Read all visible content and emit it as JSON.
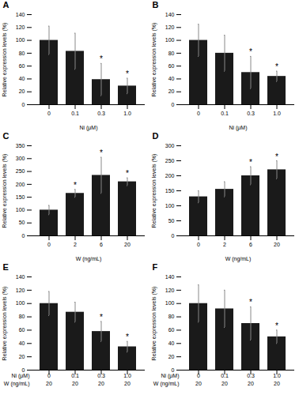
{
  "chart_data": [
    {
      "type": "bar",
      "title": "A",
      "categories": [
        "0",
        "0.1",
        "0.3",
        "1.0"
      ],
      "values": [
        100,
        83,
        39,
        29
      ],
      "errors": [
        22,
        28,
        25,
        12
      ],
      "annotations": [
        null,
        null,
        "*",
        "*"
      ],
      "xlabel": "Ni (μM)",
      "ylabel": "Relative expression levels (%)",
      "ylim": [
        0,
        140
      ],
      "yticks": [
        0,
        20,
        40,
        60,
        80,
        100,
        120,
        140
      ],
      "color": "#1a1a1a"
    },
    {
      "type": "bar",
      "title": "B",
      "categories": [
        "0",
        "0.1",
        "0.3",
        "1.0"
      ],
      "values": [
        100,
        80,
        50,
        44
      ],
      "errors": [
        25,
        28,
        25,
        8
      ],
      "annotations": [
        null,
        null,
        "*",
        "*"
      ],
      "xlabel": "Ni (μM)",
      "ylabel": "Relative expression levels (%)",
      "ylim": [
        0,
        140
      ],
      "yticks": [
        0,
        20,
        40,
        60,
        80,
        100,
        120,
        140
      ],
      "color": "#1a1a1a"
    },
    {
      "type": "bar",
      "title": "C",
      "categories": [
        "0",
        "2",
        "6",
        "20"
      ],
      "values": [
        100,
        165,
        235,
        210
      ],
      "errors": [
        18,
        15,
        70,
        15
      ],
      "annotations": [
        null,
        "*",
        "*",
        "*"
      ],
      "xlabel": "W (ng/mL)",
      "ylabel": "Relative expression levels (%)",
      "ylim": [
        0,
        350
      ],
      "yticks": [
        0,
        50,
        100,
        150,
        200,
        250,
        300,
        350
      ],
      "color": "#1a1a1a"
    },
    {
      "type": "bar",
      "title": "D",
      "categories": [
        "0",
        "2",
        "6",
        "20"
      ],
      "values": [
        130,
        155,
        200,
        220
      ],
      "errors": [
        20,
        25,
        30,
        30
      ],
      "annotations": [
        null,
        null,
        "*",
        "*"
      ],
      "xlabel": "W (ng/mL)",
      "ylabel": "Relative expression levels (%)",
      "ylim": [
        0,
        300
      ],
      "yticks": [
        0,
        50,
        100,
        150,
        200,
        250,
        300
      ],
      "color": "#1a1a1a"
    },
    {
      "type": "bar",
      "title": "E",
      "categories": [
        [
          "0",
          "20"
        ],
        [
          "0.1",
          "20"
        ],
        [
          "0.3",
          "20"
        ],
        [
          "1.0",
          "20"
        ]
      ],
      "values": [
        100,
        87,
        58,
        35
      ],
      "errors": [
        18,
        15,
        15,
        8
      ],
      "annotations": [
        null,
        null,
        "*",
        "*"
      ],
      "xlabel": [
        "Ni (μM)",
        "W (ng/mL)"
      ],
      "ylabel": "Relative expression levels (%)",
      "ylim": [
        0,
        140
      ],
      "yticks": [
        0,
        20,
        40,
        60,
        80,
        100,
        120,
        140
      ],
      "color": "#1a1a1a"
    },
    {
      "type": "bar",
      "title": "F",
      "categories": [
        [
          "0",
          "20"
        ],
        [
          "0.1",
          "20"
        ],
        [
          "0.3",
          "20"
        ],
        [
          "1.0",
          "20"
        ]
      ],
      "values": [
        100,
        92,
        70,
        50
      ],
      "errors": [
        28,
        28,
        25,
        10
      ],
      "annotations": [
        null,
        null,
        "*",
        "*"
      ],
      "xlabel": [
        "Ni (μM)",
        "W (ng/mL)"
      ],
      "ylabel": "Relative expression levels (%)",
      "ylim": [
        0,
        140
      ],
      "yticks": [
        0,
        20,
        40,
        60,
        80,
        100,
        120,
        140
      ],
      "color": "#1a1a1a"
    }
  ]
}
